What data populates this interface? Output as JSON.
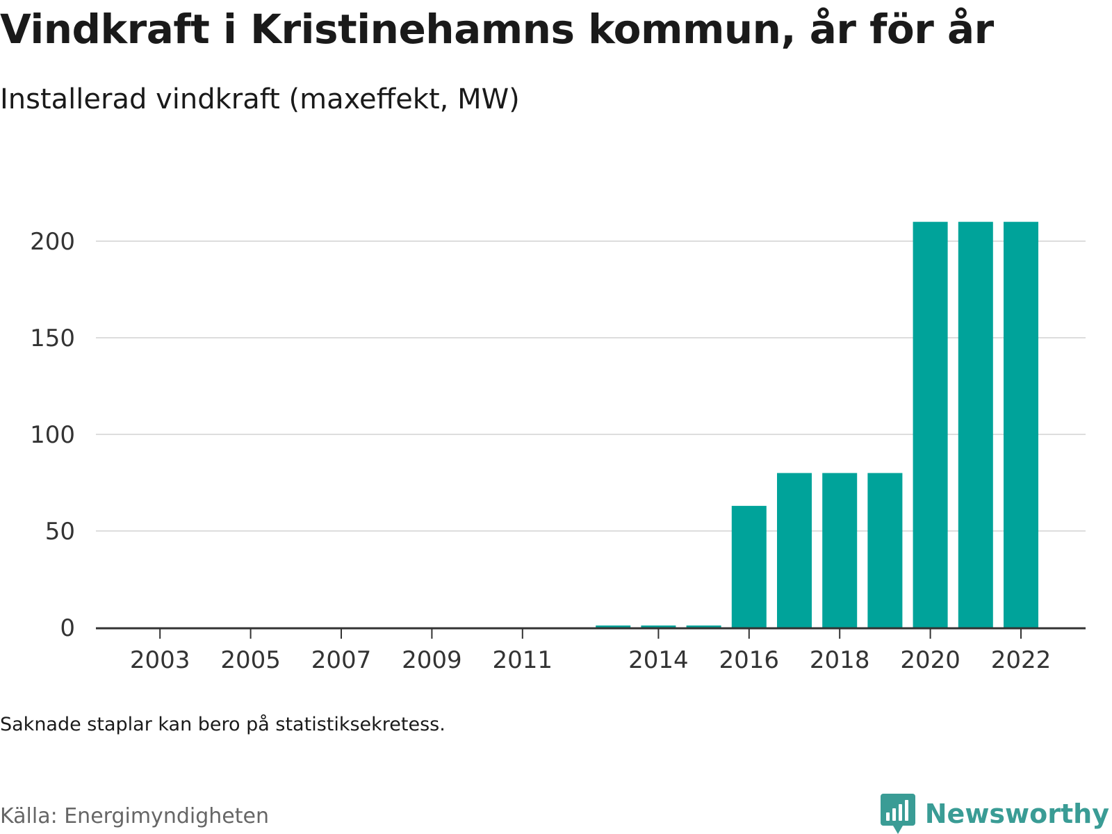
{
  "title": "Vindkraft i Kristinehamns kommun, år för år",
  "subtitle": "Installerad vindkraft (maxeffekt, MW)",
  "note": "Saknade staplar kan bero på statistiksekretess.",
  "source": "Källa: Energimyndigheten",
  "brand": {
    "name": "Newsworthy",
    "icon": "newsworthy-logo-icon",
    "color": "#3a9c95"
  },
  "chart_data": {
    "type": "bar",
    "categories": [
      "2002",
      "2003",
      "2004",
      "2005",
      "2006",
      "2007",
      "2008",
      "2009",
      "2010",
      "2011",
      "2012",
      "2013",
      "2014",
      "2015",
      "2016",
      "2017",
      "2018",
      "2019",
      "2020",
      "2021",
      "2022"
    ],
    "x_tick_labels": [
      "2003",
      "2005",
      "2007",
      "2009",
      "2011",
      "2014",
      "2016",
      "2018",
      "2020",
      "2022"
    ],
    "values": [
      null,
      0,
      0,
      0,
      0,
      0,
      0,
      0,
      0,
      0,
      null,
      1,
      1,
      1,
      63,
      80,
      80,
      80,
      210,
      210,
      210
    ],
    "ylim": [
      0,
      220
    ],
    "yticks": [
      0,
      50,
      100,
      150,
      200
    ],
    "grid": true,
    "bar_color": "#00a39a",
    "grid_color": "#dddddd",
    "axis_color": "#333333"
  }
}
